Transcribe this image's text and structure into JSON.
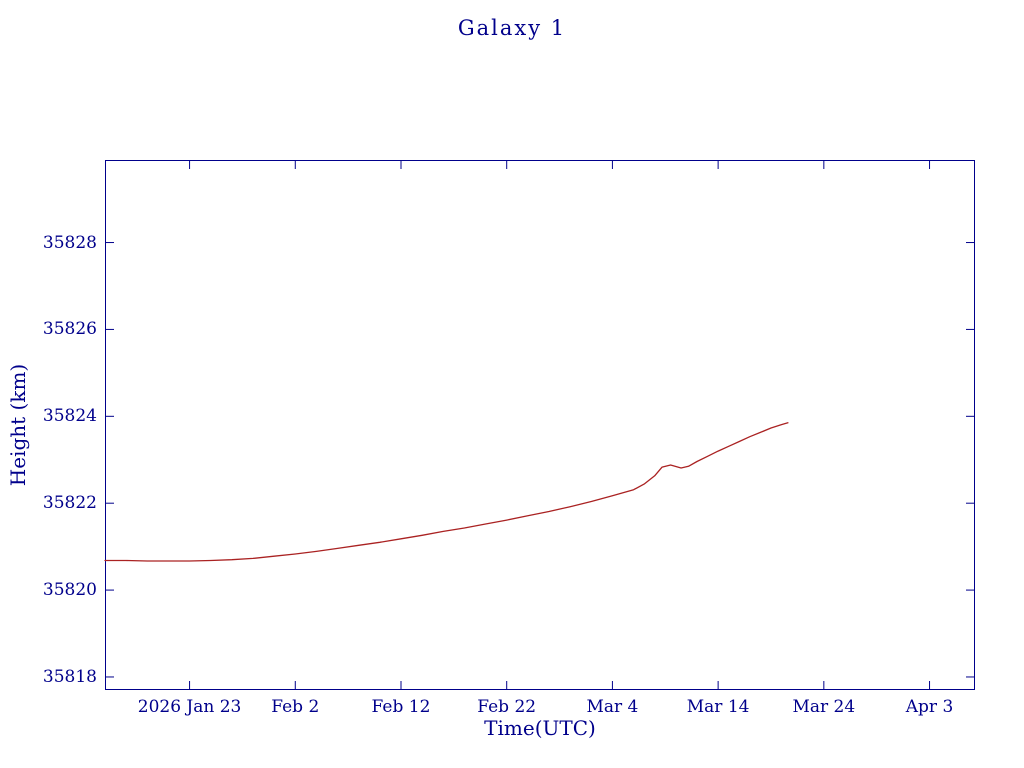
{
  "chart_data": {
    "type": "line",
    "title": "Galaxy 1",
    "xlabel": "Time(UTC)",
    "ylabel": "Height (km)",
    "axis_color": "#00008b",
    "text_color": "#00008b",
    "line_color": "#aa2222",
    "grid": false,
    "legend": "none",
    "ylim": [
      35817.7,
      35829.9
    ],
    "xlim_days": [
      0,
      82.3
    ],
    "y_ticks": [
      {
        "value": 35818,
        "label": "35818"
      },
      {
        "value": 35820,
        "label": "35820"
      },
      {
        "value": 35822,
        "label": "35822"
      },
      {
        "value": 35824,
        "label": "35824"
      },
      {
        "value": 35826,
        "label": "35826"
      },
      {
        "value": 35828,
        "label": "35828"
      }
    ],
    "x_ticks": [
      {
        "day": 8,
        "label": "2026 Jan 23"
      },
      {
        "day": 18,
        "label": "Feb 2"
      },
      {
        "day": 28,
        "label": "Feb 12"
      },
      {
        "day": 38,
        "label": "Feb 22"
      },
      {
        "day": 48,
        "label": "Mar 4"
      },
      {
        "day": 58,
        "label": "Mar 14"
      },
      {
        "day": 68,
        "label": "Mar 24"
      },
      {
        "day": 78,
        "label": "Apr 3"
      }
    ],
    "series": [
      {
        "name": "Galaxy 1 height",
        "color": "#aa2222",
        "points": [
          [
            0,
            35820.68
          ],
          [
            2,
            35820.68
          ],
          [
            4,
            35820.67
          ],
          [
            6,
            35820.67
          ],
          [
            8,
            35820.67
          ],
          [
            10,
            35820.68
          ],
          [
            12,
            35820.7
          ],
          [
            14,
            35820.73
          ],
          [
            16,
            35820.78
          ],
          [
            18,
            35820.83
          ],
          [
            20,
            35820.89
          ],
          [
            22,
            35820.96
          ],
          [
            24,
            35821.03
          ],
          [
            26,
            35821.1
          ],
          [
            28,
            35821.18
          ],
          [
            30,
            35821.26
          ],
          [
            32,
            35821.35
          ],
          [
            34,
            35821.43
          ],
          [
            36,
            35821.52
          ],
          [
            38,
            35821.61
          ],
          [
            40,
            35821.71
          ],
          [
            42,
            35821.81
          ],
          [
            44,
            35821.92
          ],
          [
            46,
            35822.04
          ],
          [
            48,
            35822.17
          ],
          [
            50,
            35822.31
          ],
          [
            51,
            35822.44
          ],
          [
            52,
            35822.63
          ],
          [
            52.7,
            35822.83
          ],
          [
            53.5,
            35822.88
          ],
          [
            54.5,
            35822.81
          ],
          [
            55.2,
            35822.85
          ],
          [
            56,
            35822.96
          ],
          [
            57,
            35823.08
          ],
          [
            58,
            35823.2
          ],
          [
            59,
            35823.31
          ],
          [
            60,
            35823.42
          ],
          [
            61,
            35823.53
          ],
          [
            62,
            35823.63
          ],
          [
            63,
            35823.73
          ],
          [
            64,
            35823.81
          ],
          [
            64.6,
            35823.85
          ]
        ]
      }
    ]
  }
}
